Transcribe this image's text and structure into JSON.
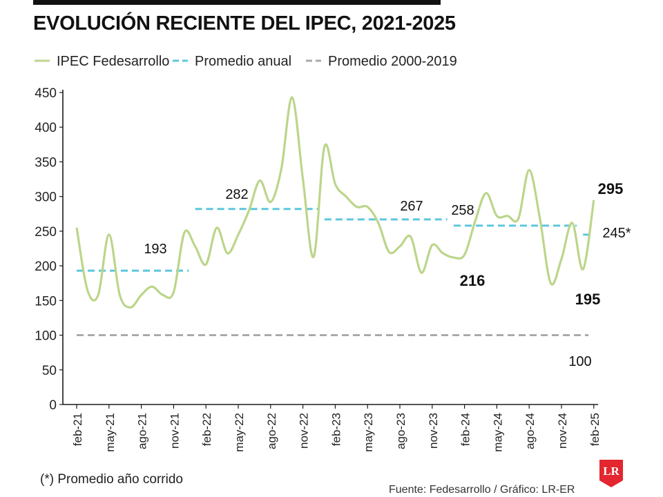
{
  "header": {
    "title": "EVOLUCIÓN RECIENTE DEL IPEC, 2021-2025"
  },
  "footer": {
    "footnote": "(*) Promedio año corrido",
    "source": "Fuente: Fedesarrollo / Gráfico: LR-ER",
    "logo_text": "LR"
  },
  "colors": {
    "ipec": "#bcd58a",
    "annual": "#5cc7dc",
    "historic": "#a8a8a8",
    "axis": "#1a1a1a",
    "logo_red": "#e3262f"
  },
  "chart_data": {
    "type": "line",
    "title": "EVOLUCIÓN RECIENTE DEL IPEC, 2021-2025",
    "xlabel": "",
    "ylabel": "",
    "ylim": [
      0,
      450
    ],
    "yticks": [
      0,
      50,
      100,
      150,
      200,
      250,
      300,
      350,
      400,
      450
    ],
    "grid": false,
    "legend_position": "top-left",
    "x_tick_labels": [
      "feb-21",
      "may-21",
      "ago-21",
      "nov-21",
      "feb-22",
      "may-22",
      "ago-22",
      "nov-22",
      "feb-23",
      "may-23",
      "ago-23",
      "nov-23",
      "feb-24",
      "may-24",
      "ago-24",
      "nov-24",
      "feb-25"
    ],
    "x": [
      "feb-21",
      "mar-21",
      "abr-21",
      "may-21",
      "jun-21",
      "jul-21",
      "ago-21",
      "sep-21",
      "oct-21",
      "nov-21",
      "dic-21",
      "ene-22",
      "feb-22",
      "mar-22",
      "abr-22",
      "may-22",
      "jun-22",
      "jul-22",
      "ago-22",
      "sep-22",
      "oct-22",
      "nov-22",
      "dic-22",
      "ene-23",
      "feb-23",
      "mar-23",
      "abr-23",
      "may-23",
      "jun-23",
      "jul-23",
      "ago-23",
      "sep-23",
      "oct-23",
      "nov-23",
      "dic-23",
      "ene-24",
      "feb-24",
      "mar-24",
      "abr-24",
      "may-24",
      "jun-24",
      "jul-24",
      "ago-24",
      "sep-24",
      "oct-24",
      "nov-24",
      "dic-24",
      "ene-25",
      "feb-25"
    ],
    "series": [
      {
        "name": "IPEC Fedesarrollo",
        "style": "solid",
        "values": [
          255,
          165,
          158,
          245,
          158,
          140,
          158,
          170,
          158,
          162,
          248,
          228,
          202,
          255,
          218,
          245,
          280,
          323,
          292,
          340,
          443,
          325,
          213,
          372,
          318,
          300,
          285,
          285,
          262,
          220,
          228,
          242,
          190,
          230,
          218,
          212,
          216,
          265,
          305,
          272,
          272,
          268,
          338,
          268,
          175,
          210,
          262,
          195,
          295
        ]
      },
      {
        "name": "Promedio anual",
        "style": "dashed",
        "segments": [
          {
            "from": "feb-21",
            "to": "dic-21",
            "value": 193
          },
          {
            "from": "ene-22",
            "to": "dic-22",
            "value": 282
          },
          {
            "from": "ene-23",
            "to": "dic-23",
            "value": 267
          },
          {
            "from": "ene-24",
            "to": "dic-24",
            "value": 258
          },
          {
            "from": "ene-25",
            "to": "feb-25",
            "value": 245
          }
        ]
      },
      {
        "name": "Promedio 2000-2019",
        "style": "dashed",
        "segments": [
          {
            "from": "feb-21",
            "to": "ene-25",
            "value": 100
          }
        ]
      }
    ],
    "annotations": [
      {
        "text": "193",
        "x": "oct-21",
        "y": 193,
        "bold": false
      },
      {
        "text": "282",
        "x": "jun-22",
        "y": 282,
        "bold": false
      },
      {
        "text": "267",
        "x": "oct-23",
        "y": 267,
        "bold": false
      },
      {
        "text": "258",
        "x": "feb-24",
        "y": 258,
        "bold": false
      },
      {
        "text": "216",
        "x": "feb-24",
        "y": 216,
        "bold": true
      },
      {
        "text": "195",
        "x": "dic-24",
        "y": 195,
        "bold": true
      },
      {
        "text": "295",
        "x": "feb-25",
        "y": 295,
        "bold": true
      },
      {
        "text": "245*",
        "x": "feb-25",
        "y": 245,
        "bold": false
      },
      {
        "text": "100",
        "x": "dic-24",
        "y": 100,
        "bold": false
      }
    ]
  }
}
